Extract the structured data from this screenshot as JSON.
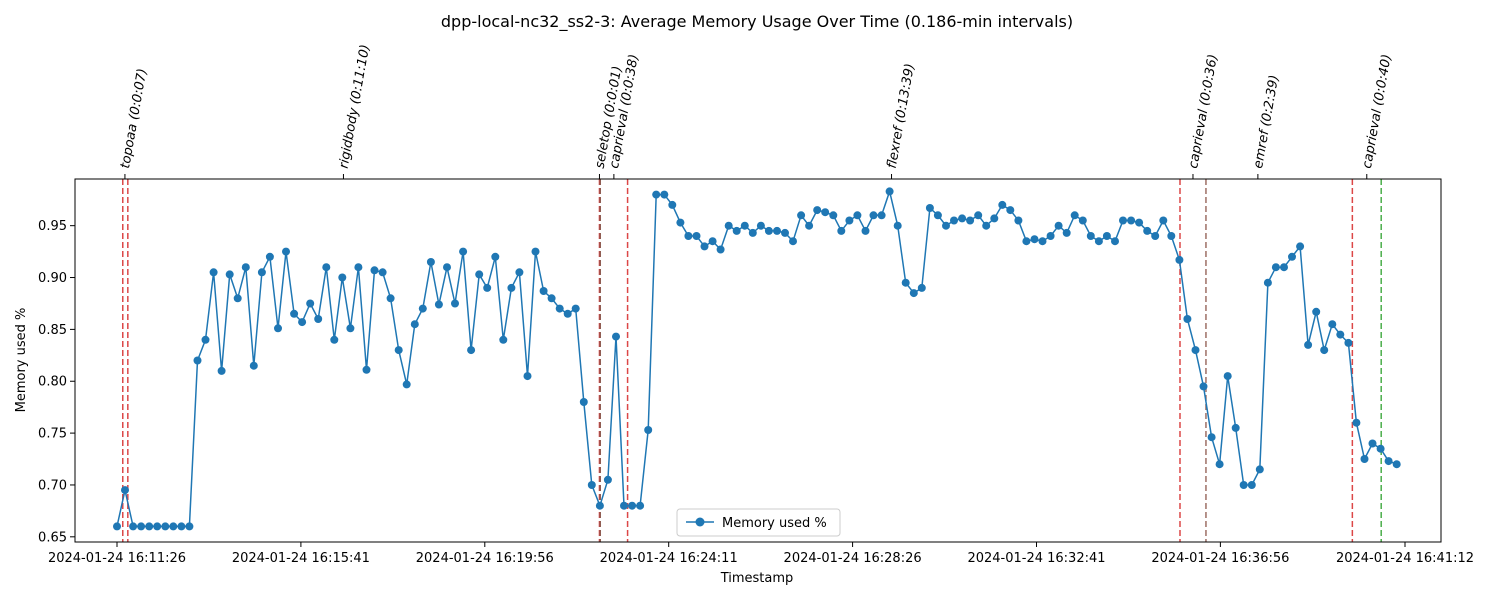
{
  "chart_data": {
    "type": "line",
    "title": "dpp-local-nc32_ss2-3: Average Memory Usage Over Time (0.186-min intervals)",
    "xlabel": "Timestamp",
    "ylabel": "Memory used %",
    "xlim": [
      "2024-01-24 16:11:26",
      "2024-01-24 16:41:12"
    ],
    "ylim": [
      0.645,
      0.995
    ],
    "x_ticks": [
      "2024-01-24 16:11:26",
      "2024-01-24 16:15:41",
      "2024-01-24 16:19:56",
      "2024-01-24 16:24:11",
      "2024-01-24 16:28:26",
      "2024-01-24 16:32:41",
      "2024-01-24 16:36:56",
      "2024-01-24 16:41:12"
    ],
    "y_ticks": [
      "0.65",
      "0.70",
      "0.75",
      "0.80",
      "0.85",
      "0.90",
      "0.95"
    ],
    "y_tick_values": [
      0.65,
      0.7,
      0.75,
      0.8,
      0.85,
      0.9,
      0.95
    ],
    "grid": false,
    "legend_position": "bottom-center",
    "series": [
      {
        "name": "Memory used %",
        "color": "#1f77b4",
        "marker": "circle",
        "x_start": "2024-01-24 16:11:26",
        "interval_seconds": 11.16,
        "values": [
          0.66,
          0.695,
          0.66,
          0.66,
          0.66,
          0.66,
          0.66,
          0.66,
          0.66,
          0.66,
          0.82,
          0.84,
          0.905,
          0.81,
          0.903,
          0.88,
          0.91,
          0.815,
          0.905,
          0.92,
          0.851,
          0.925,
          0.865,
          0.857,
          0.875,
          0.86,
          0.91,
          0.84,
          0.9,
          0.851,
          0.91,
          0.811,
          0.907,
          0.905,
          0.88,
          0.83,
          0.797,
          0.855,
          0.87,
          0.915,
          0.874,
          0.91,
          0.875,
          0.925,
          0.83,
          0.903,
          0.89,
          0.92,
          0.84,
          0.89,
          0.905,
          0.805,
          0.925,
          0.887,
          0.88,
          0.87,
          0.865,
          0.87,
          0.78,
          0.7,
          0.68,
          0.705,
          0.843,
          0.68,
          0.68,
          0.68,
          0.753,
          0.98,
          0.98,
          0.97,
          0.953,
          0.94,
          0.94,
          0.93,
          0.935,
          0.927,
          0.95,
          0.945,
          0.95,
          0.943,
          0.95,
          0.945,
          0.945,
          0.943,
          0.935,
          0.96,
          0.95,
          0.965,
          0.963,
          0.96,
          0.945,
          0.955,
          0.96,
          0.945,
          0.96,
          0.96,
          0.983,
          0.95,
          0.895,
          0.885,
          0.89,
          0.967,
          0.96,
          0.95,
          0.955,
          0.957,
          0.955,
          0.96,
          0.95,
          0.957,
          0.97,
          0.965,
          0.955,
          0.935,
          0.937,
          0.935,
          0.94,
          0.95,
          0.943,
          0.96,
          0.955,
          0.94,
          0.935,
          0.94,
          0.935,
          0.955,
          0.955,
          0.953,
          0.945,
          0.94,
          0.955,
          0.94,
          0.917,
          0.86,
          0.83,
          0.795,
          0.746,
          0.72,
          0.805,
          0.755,
          0.7,
          0.7,
          0.715,
          0.895,
          0.91,
          0.91,
          0.92,
          0.93,
          0.835,
          0.867,
          0.83,
          0.855,
          0.845,
          0.837,
          0.76,
          0.725,
          0.74,
          0.735,
          0.723,
          0.72
        ]
      }
    ],
    "task_markers": [
      {
        "label": "topoaa (0:0:07)",
        "start": "2024-01-24 16:11:34",
        "end": "2024-01-24 16:11:41",
        "start_color": "#d62728",
        "end_color": "#d62728"
      },
      {
        "label": "rigidbody (0:11:10)",
        "start": "",
        "end": "",
        "start_color": "",
        "end_color": ""
      },
      {
        "label": "seletop (0:0:01)",
        "start": "2024-01-24 16:22:35",
        "end": "2024-01-24 16:22:36",
        "start_color": "#d62728",
        "end_color": "#8c564b"
      },
      {
        "label": "caprieval (0:0:38)",
        "start": "2024-01-24 16:22:36",
        "end": "2024-01-24 16:23:14",
        "start_color": "#8c564b",
        "end_color": "#d62728"
      },
      {
        "label": "flexref (0:13:39)",
        "start": "",
        "end": "",
        "start_color": "",
        "end_color": ""
      },
      {
        "label": "caprieval (0:0:36)",
        "start": "2024-01-24 16:36:00",
        "end": "2024-01-24 16:36:36",
        "start_color": "#d62728",
        "end_color": "#8c564b"
      },
      {
        "label": "emref (0:2:39)",
        "start": "",
        "end": "",
        "start_color": "",
        "end_color": ""
      },
      {
        "label": "caprieval (0:0:40)",
        "start": "2024-01-24 16:39:59",
        "end": "2024-01-24 16:40:39",
        "start_color": "#d62728",
        "end_color": "#2ca02c"
      }
    ],
    "task_label_times": [
      "2024-01-24 16:11:37",
      "2024-01-24 16:16:40",
      "2024-01-24 16:22:35",
      "2024-01-24 16:22:55",
      "2024-01-24 16:29:20",
      "2024-01-24 16:36:18",
      "2024-01-24 16:37:48",
      "2024-01-24 16:40:19"
    ]
  }
}
